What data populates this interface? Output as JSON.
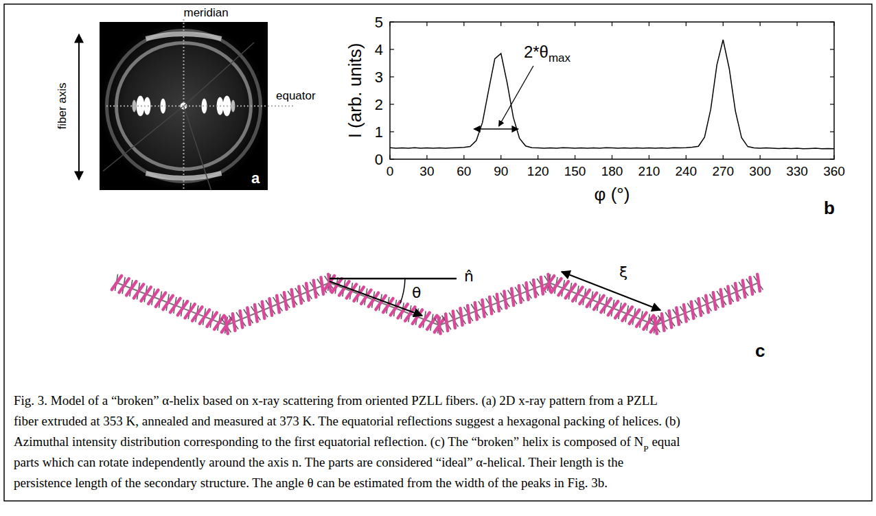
{
  "panel_a": {
    "letter": "a",
    "meridian": "meridian",
    "equator": "equator",
    "axis_label": "fiber axis"
  },
  "panel_b": {
    "letter": "b"
  },
  "chart_data": {
    "type": "line",
    "x": [
      0,
      5,
      10,
      15,
      20,
      25,
      30,
      35,
      40,
      45,
      50,
      55,
      60,
      65,
      70,
      75,
      80,
      85,
      90,
      95,
      100,
      105,
      110,
      115,
      120,
      125,
      130,
      135,
      140,
      145,
      150,
      155,
      160,
      165,
      170,
      175,
      180,
      185,
      190,
      195,
      200,
      205,
      210,
      215,
      220,
      225,
      230,
      235,
      240,
      245,
      250,
      255,
      260,
      265,
      270,
      275,
      280,
      285,
      290,
      295,
      300,
      305,
      310,
      315,
      320,
      325,
      330,
      335,
      340,
      345,
      350,
      355,
      360
    ],
    "values": [
      0.42,
      0.4,
      0.41,
      0.4,
      0.42,
      0.4,
      0.41,
      0.4,
      0.41,
      0.4,
      0.41,
      0.42,
      0.43,
      0.46,
      0.68,
      1.34,
      2.52,
      3.66,
      3.85,
      2.78,
      1.52,
      0.76,
      0.48,
      0.42,
      0.41,
      0.4,
      0.41,
      0.4,
      0.42,
      0.41,
      0.4,
      0.41,
      0.4,
      0.41,
      0.4,
      0.42,
      0.41,
      0.4,
      0.41,
      0.4,
      0.41,
      0.4,
      0.41,
      0.4,
      0.41,
      0.4,
      0.42,
      0.41,
      0.42,
      0.44,
      0.47,
      0.8,
      1.82,
      3.44,
      4.35,
      3.3,
      1.75,
      0.78,
      0.46,
      0.41,
      0.4,
      0.41,
      0.4,
      0.39,
      0.4,
      0.39,
      0.4,
      0.38,
      0.39,
      0.4,
      0.38,
      0.39,
      0.38
    ],
    "color": "#000000",
    "x_label": "φ (°)",
    "y_label": "I (arb. units)",
    "xlim": [
      0,
      360
    ],
    "xticks": [
      0,
      30,
      60,
      90,
      120,
      150,
      180,
      210,
      240,
      270,
      300,
      330,
      360
    ],
    "ylim": [
      0,
      5
    ],
    "yticks": [
      0,
      1,
      2,
      3,
      4,
      5
    ],
    "annotations": [
      {
        "text": "2*θ",
        "sub": "max",
        "x": [
          68,
          104
        ],
        "y": 1.1
      }
    ]
  },
  "panel_c": {
    "letter": "c",
    "axis_symbol": "n̂",
    "angle_symbol": "θ",
    "length_symbol": "ξ"
  },
  "caption": {
    "lines": [
      [
        {
          "t": "Fig. 3. Model of a “broken” α-helix based on x-ray scattering from oriented PZLL fibers. (a) 2D x-ray pattern from a PZLL"
        }
      ],
      [
        {
          "t": "fiber extruded at 353 K, annealed and measured at 373 K. The equatorial reflections suggest a hexagonal packing of helices. (b)"
        }
      ],
      [
        {
          "t": "Azimuthal intensity distribution corresponding to the first equatorial reflection. (c) The “broken” helix is composed of N"
        },
        {
          "t": "P",
          "sub": true
        },
        {
          "t": " equal"
        }
      ],
      [
        {
          "t": "parts which can rotate independently around the axis n. The parts are considered “ideal” α-helical. Their length is the"
        }
      ],
      [
        {
          "t": "persistence length of the secondary structure. The angle θ can be estimated from the width of the peaks in Fig. 3b."
        }
      ]
    ]
  }
}
